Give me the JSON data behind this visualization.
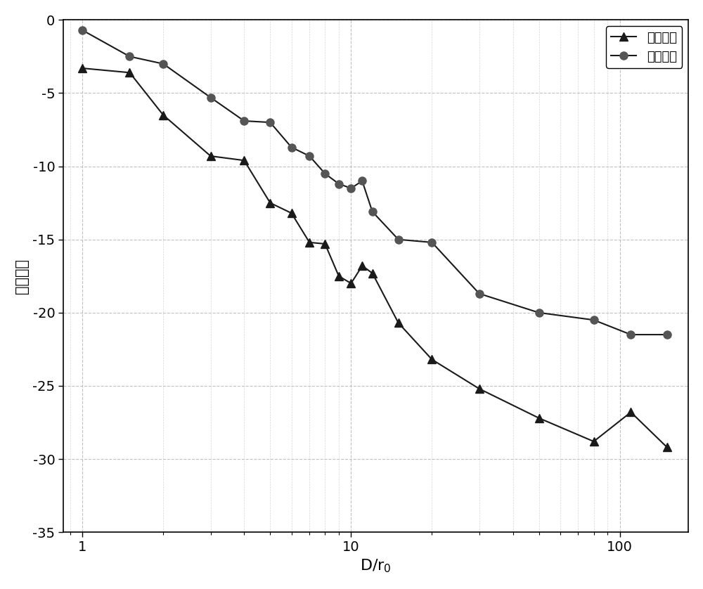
{
  "single_mode_x": [
    1.0,
    1.5,
    2.0,
    3.0,
    4.0,
    5.0,
    6.0,
    7.0,
    8.0,
    9.0,
    10.0,
    11.0,
    12.0,
    15.0,
    20.0,
    30.0,
    50.0,
    80.0,
    110.0,
    150.0
  ],
  "single_mode_y": [
    -3.3,
    -3.6,
    -6.5,
    -9.3,
    -9.6,
    -12.5,
    -13.2,
    -15.2,
    -15.3,
    -17.5,
    -18.0,
    -16.8,
    -17.3,
    -20.7,
    -23.2,
    -25.2,
    -27.2,
    -28.8,
    -26.8,
    -29.2
  ],
  "four_mode_x": [
    1.0,
    1.5,
    2.0,
    3.0,
    4.0,
    5.0,
    6.0,
    7.0,
    8.0,
    9.0,
    10.0,
    11.0,
    12.0,
    15.0,
    20.0,
    30.0,
    50.0,
    80.0,
    110.0,
    150.0
  ],
  "four_mode_y": [
    -0.7,
    -2.5,
    -3.0,
    -5.3,
    -6.9,
    -7.0,
    -8.7,
    -9.3,
    -10.5,
    -11.2,
    -11.5,
    -11.0,
    -13.1,
    -15.0,
    -15.2,
    -18.7,
    -20.0,
    -20.5,
    -21.5,
    -21.5
  ],
  "xlabel": "D/r$_0$",
  "ylabel": "耦合效率",
  "legend_single": "单模光纤",
  "legend_four": "四模光纤",
  "xlim": [
    0.85,
    180
  ],
  "ylim": [
    -35,
    0
  ],
  "yticks": [
    0,
    -5,
    -10,
    -15,
    -20,
    -25,
    -30,
    -35
  ],
  "line_color": "#1a1a1a",
  "marker_color_single": "#1a1a1a",
  "marker_color_four": "#555555",
  "grid_color": "#bbbbbb",
  "background_color": "#ffffff",
  "xlabel_fontsize": 16,
  "ylabel_fontsize": 15,
  "tick_fontsize": 14,
  "legend_fontsize": 13
}
